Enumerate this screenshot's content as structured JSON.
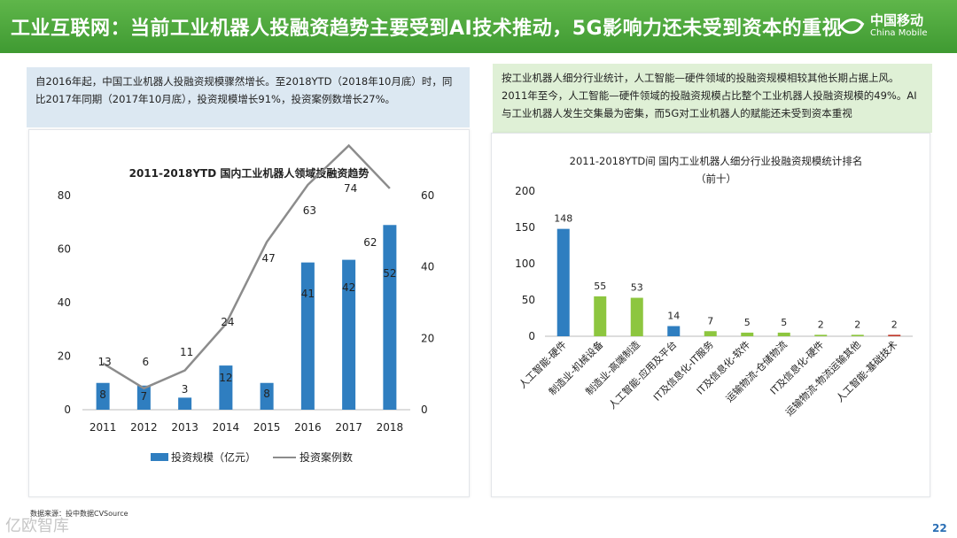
{
  "header": {
    "title": "工业互联网：当前工业机器人投融资趋势主要受到AI技术推动，5G影响力还未受到资本的重视",
    "logo_cn": "中国移动",
    "logo_en": "China Mobile",
    "brand_color": "#48a43a"
  },
  "left_note": {
    "text": "自2016年起，中国工业机器人投融资规模骤然增长。至2018YTD（2018年10月底）时，同比2017年同期（2017年10月底），投资规模增长91%，投资案例数增长27%。"
  },
  "right_note": {
    "text": "按工业机器人细分行业统计，人工智能—硬件领域的投融资规模相较其他长期占据上风。2011年至今，人工智能—硬件领域的投融资规模占比整个工业机器人投融资规模的49%。AI与工业机器人发生交集最为密集，而5G对工业机器人的赋能还未受到资本重视"
  },
  "chart_data": [
    {
      "type": "bar",
      "title": "2011-2018YTD 国内工业机器人领域投融资趋势",
      "categories": [
        "2011",
        "2012",
        "2013",
        "2014",
        "2015",
        "2016",
        "2017",
        "2018"
      ],
      "series": [
        {
          "name": "投资规模（亿元）",
          "type": "bar",
          "axis": "left",
          "color": "#2f7ec0",
          "values": [
            8,
            7,
            3,
            12,
            8,
            41,
            42,
            52
          ],
          "bar_heights": [
            10,
            9,
            4.5,
            16.5,
            10,
            55,
            56,
            69
          ]
        },
        {
          "name": "投资案例数",
          "type": "line",
          "axis": "right",
          "color": "#8c8c8c",
          "values": [
            13,
            6,
            11,
            24,
            47,
            63,
            74,
            62
          ]
        }
      ],
      "y_left": {
        "min": 0,
        "max": 80,
        "ticks": [
          "0",
          "20",
          "40",
          "60",
          "80"
        ]
      },
      "y_right": {
        "min": 0,
        "max": 60,
        "ticks": [
          "0",
          "20",
          "40",
          "60"
        ]
      },
      "legend": {
        "bar_label": "投资规模（亿元）",
        "line_label": "投资案例数"
      }
    },
    {
      "type": "bar",
      "title": "2011-2018YTD间 国内工业机器人细分行业投融资规模统计排名",
      "subtitle": "（前十）",
      "categories": [
        "人工智能-硬件",
        "制造业-机械设备",
        "制造业-高端制造",
        "人工智能-应用及平台",
        "IT及信息化-IT服务",
        "IT及信息化-软件",
        "运输物流-仓储物流",
        "IT及信息化-硬件",
        "运输物流-物流运输其他",
        "人工智能-基础技术"
      ],
      "values": [
        148,
        55,
        53,
        14,
        7,
        5,
        5,
        2,
        2,
        2
      ],
      "value_labels": [
        "148",
        "55",
        "53",
        "14",
        "7",
        "5",
        "5",
        "2",
        "2",
        "2"
      ],
      "colors": [
        "#2f7ec0",
        "#8dc63f",
        "#8dc63f",
        "#2f7ec0",
        "#8dc63f",
        "#8dc63f",
        "#8dc63f",
        "#8dc63f",
        "#8dc63f",
        "#c0392b"
      ],
      "y": {
        "min": 0,
        "max": 200,
        "ticks": [
          "0",
          "50",
          "100",
          "150",
          "200"
        ]
      }
    }
  ],
  "source": "数据来源：投中数据CVSource",
  "watermark": "亿欧智库",
  "page_number": "22"
}
